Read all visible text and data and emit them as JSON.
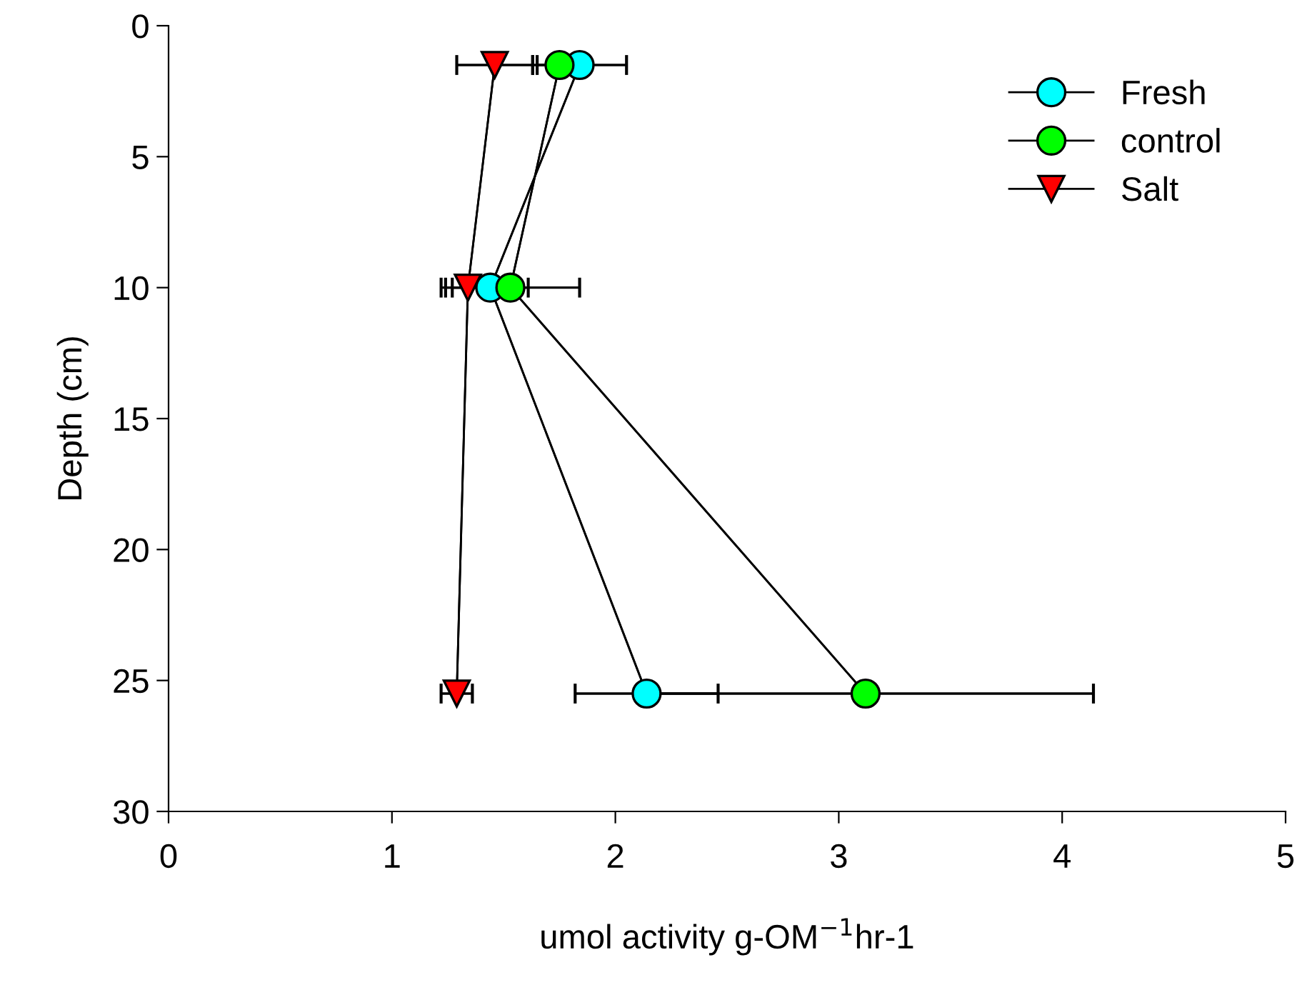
{
  "chart_data": {
    "type": "line",
    "xlabel": "umol activity g-OM$^{−1}$hr-1",
    "ylabel": "Depth (cm)",
    "xlim": [
      0,
      5
    ],
    "xticks": [
      0,
      1,
      2,
      3,
      4,
      5
    ],
    "ylim": [
      30,
      0
    ],
    "yticks": [
      0,
      5,
      10,
      15,
      20,
      25,
      30
    ],
    "grid": false,
    "legend": "top right",
    "line_style": "solid",
    "series": [
      {
        "name": "Fresh",
        "color": "#00ffff",
        "marker": "circle",
        "x": [
          1.84,
          1.44,
          2.14
        ],
        "values": [
          1.5,
          10,
          25.5
        ],
        "xerrors": [
          0.21,
          0.17,
          0.32
        ]
      },
      {
        "name": "control",
        "color": "#00ff00",
        "marker": "circle",
        "x": [
          1.75,
          1.53,
          3.12
        ],
        "values": [
          1.5,
          10,
          25.5
        ],
        "xerrors": [
          0.1,
          0.31,
          1.02
        ]
      },
      {
        "name": "Salt",
        "color": "#ff0000",
        "marker": "triangle",
        "x": [
          1.46,
          1.34,
          1.29
        ],
        "values": [
          1.5,
          10,
          25.5
        ],
        "xerrors": [
          0.17,
          0.1,
          0.07
        ]
      }
    ]
  }
}
